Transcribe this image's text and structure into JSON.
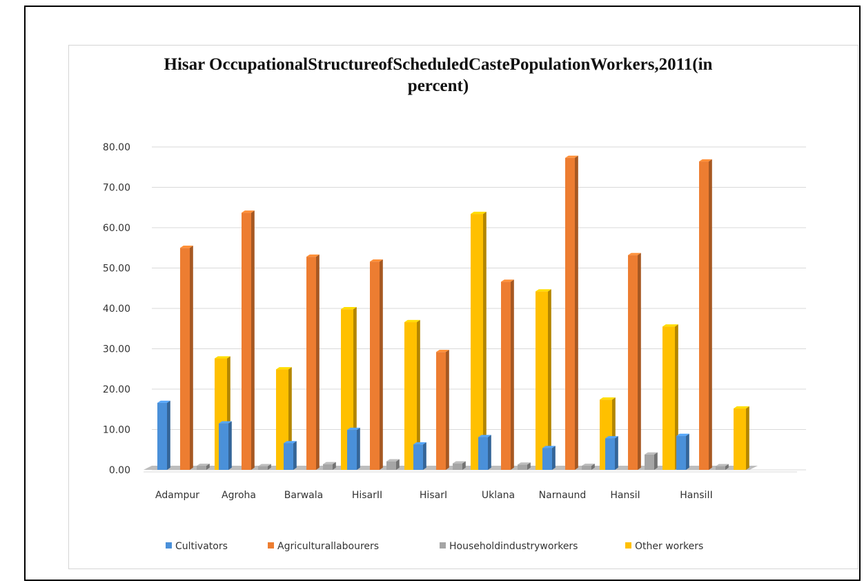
{
  "chart_data": {
    "type": "bar",
    "title": "Hisar OccupationalStructureofScheduledCastePopulationWorkers,2011(in percent)",
    "xlabel": "",
    "ylabel": "",
    "ylim": [
      0,
      80
    ],
    "yticks": [
      "0.00",
      "10.00",
      "20.00",
      "30.00",
      "40.00",
      "50.00",
      "60.00",
      "70.00",
      "80.00"
    ],
    "grid": true,
    "legend_position": "bottom",
    "categories": [
      "Adampur",
      "Agroha",
      "Barwala",
      "HisarII",
      "HisarI",
      "Uklana",
      "Narnaund",
      "HansiI",
      "HansiII"
    ],
    "series": [
      {
        "name": "Cultivators",
        "color": "#4a90d9",
        "values": [
          16.6,
          11.5,
          6.6,
          9.9,
          6.3,
          8.1,
          5.4,
          7.8,
          8.4
        ]
      },
      {
        "name": "Agriculturallabourers",
        "color": "#ed7d31",
        "values": [
          55.0,
          63.7,
          52.8,
          51.6,
          29.2,
          46.6,
          77.3,
          53.2,
          76.4
        ]
      },
      {
        "name": "Householdindustryworkers",
        "color": "#a5a5a5",
        "values": [
          1.0,
          0.9,
          1.4,
          2.1,
          1.6,
          1.3,
          1.0,
          3.8,
          0.9
        ]
      },
      {
        "name": "Other workers",
        "color": "#ffc000",
        "values": [
          27.6,
          24.9,
          39.8,
          36.6,
          63.4,
          44.2,
          17.4,
          35.5,
          15.2
        ]
      }
    ]
  }
}
